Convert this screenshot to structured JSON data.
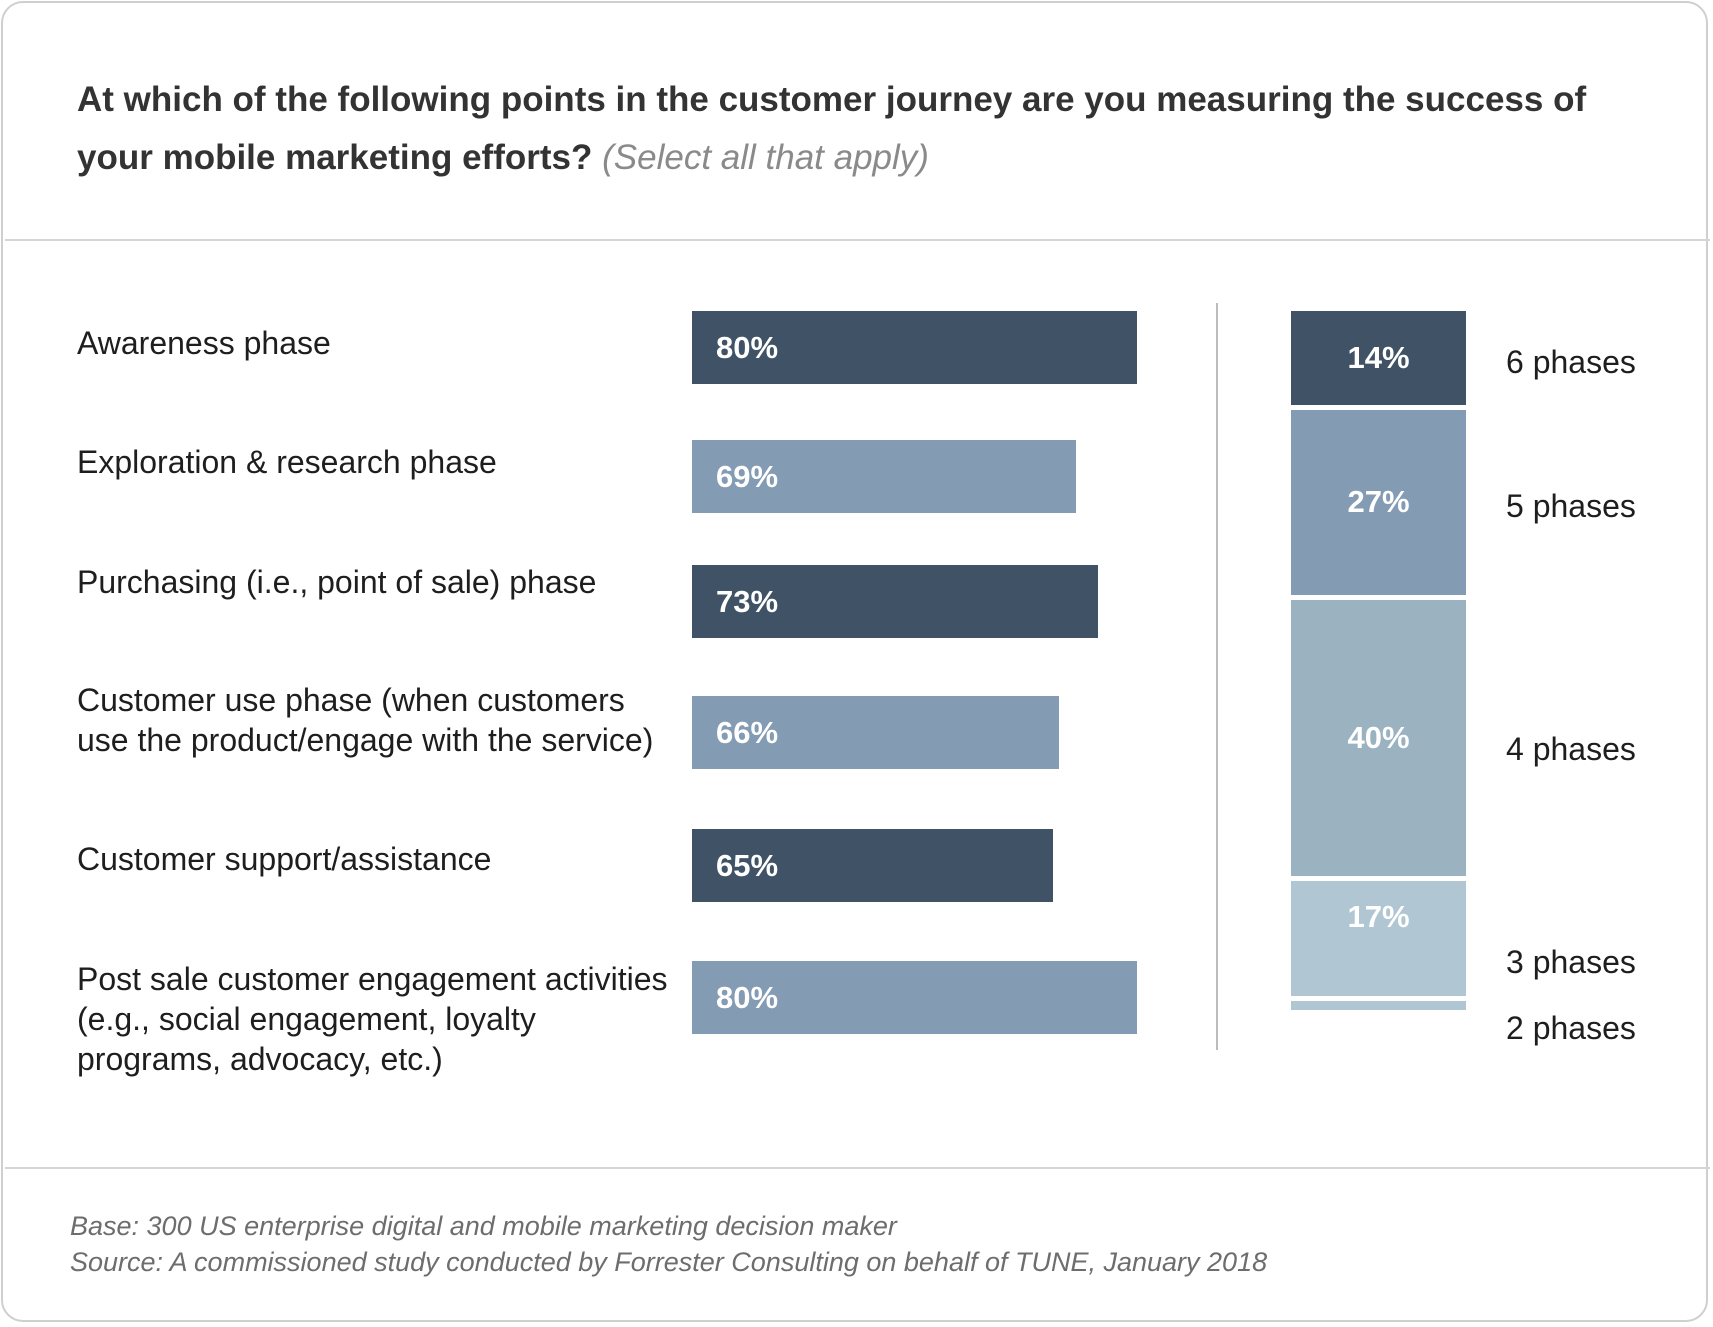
{
  "question": {
    "text": "At which of the following points in the customer journey are you measuring the success of your mobile marketing efforts?",
    "note": "(Select all that apply)"
  },
  "chart_data": [
    {
      "type": "bar",
      "orientation": "horizontal",
      "categories": [
        "Awareness phase",
        "Exploration & research phase",
        "Purchasing (i.e., point of sale) phase",
        "Customer use phase (when customers use the product/engage with the service)",
        "Customer support/assistance",
        "Post sale customer engagement activities (e.g., social engagement, loyalty programs, advocacy, etc.)"
      ],
      "values": [
        80,
        69,
        73,
        66,
        65,
        80
      ],
      "value_labels": [
        "80%",
        "69%",
        "73%",
        "66%",
        "65%",
        "80%"
      ],
      "colors": [
        "#405366",
        "#839bb3",
        "#405366",
        "#839bb3",
        "#405366",
        "#839bb3"
      ],
      "xlim": [
        0,
        100
      ],
      "grid": false
    },
    {
      "type": "bar",
      "orientation": "stacked-vertical",
      "categories": [
        "6 phases",
        "5 phases",
        "4 phases",
        "3 phases",
        "2 phases"
      ],
      "values": [
        14,
        27,
        40,
        17,
        2
      ],
      "value_labels": [
        "14%",
        "27%",
        "40%",
        "17%",
        ""
      ],
      "colors": [
        "#405366",
        "#839bb3",
        "#9bb3c1",
        "#b0c6d2",
        "#b0c6d2"
      ],
      "ylim": [
        0,
        100
      ]
    }
  ],
  "footer": {
    "base": "Base: 300 US enterprise digital and mobile marketing decision maker",
    "source": "Source: A commissioned study conducted by Forrester Consulting on behalf of TUNE, January 2018"
  }
}
